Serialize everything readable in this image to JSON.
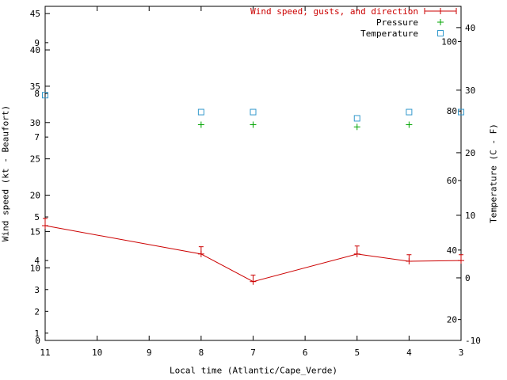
{
  "chart_data": {
    "type": "line",
    "title": "",
    "xlabel": "Local time (Atlantic/Cape_Verde)",
    "ylabel_left": "Wind speed (kt - Beaufort)",
    "ylabel_right": "Temperature (C - F)",
    "x_domain": [
      11,
      3
    ],
    "x_ticks": [
      "11",
      "10",
      "9",
      "8",
      "7",
      "6",
      "5",
      "4",
      "3"
    ],
    "grid": false,
    "legend_position": "top-right-inside",
    "left_axis": {
      "unit": "kt",
      "range": [
        0,
        46
      ],
      "kt_tick_labels": [
        45,
        40,
        35,
        30,
        25,
        20,
        15,
        10,
        0
      ],
      "beaufort_tick_labels": [
        {
          "label": "9",
          "kt": 41
        },
        {
          "label": "8",
          "kt": 34
        },
        {
          "label": "7",
          "kt": 28
        },
        {
          "label": "5",
          "kt": 17
        },
        {
          "label": "4",
          "kt": 11
        },
        {
          "label": "3",
          "kt": 7
        },
        {
          "label": "2",
          "kt": 4
        },
        {
          "label": "1",
          "kt": 1
        }
      ]
    },
    "right_axis": {
      "unit": "C / F",
      "celsius_range": [
        -10,
        43.4
      ],
      "celsius_tick_labels": [
        40,
        30,
        20,
        10,
        0,
        -10
      ],
      "fahrenheit_tick_labels": [
        100,
        80,
        60,
        40,
        20
      ]
    },
    "series": [
      {
        "name": "Wind speed, gusts, and direction",
        "color": "#cc0000",
        "legend_text_color": "#cc0000",
        "marker": "plus-errorbar",
        "axis": "left",
        "unit": "kt",
        "points": [
          {
            "x": 11,
            "speed": 15.8,
            "gust": 16.8
          },
          {
            "x": 8,
            "speed": 11.9,
            "gust": 12.9
          },
          {
            "x": 7,
            "speed": 8.1,
            "gust": 9.0
          },
          {
            "x": 5,
            "speed": 11.9,
            "gust": 13.0
          },
          {
            "x": 4,
            "speed": 10.9,
            "gust": 11.8
          },
          {
            "x": 3,
            "speed": 11.0,
            "gust": 11.8
          }
        ]
      },
      {
        "name": "Pressure",
        "color": "#00a400",
        "legend_text_color": "#000000",
        "marker": "plus",
        "axis": "left",
        "note": "pressure scale not labeled on chart; y values are plot positions on the left axis",
        "points": [
          {
            "x": 8,
            "y": 29.7
          },
          {
            "x": 7,
            "y": 29.7
          },
          {
            "x": 5,
            "y": 29.4
          },
          {
            "x": 4,
            "y": 29.7
          }
        ]
      },
      {
        "name": "Temperature",
        "color": "#3399cc",
        "legend_text_color": "#000000",
        "marker": "open-square",
        "axis": "right",
        "unit": "C",
        "points": [
          {
            "x": 11,
            "c": 29.2
          },
          {
            "x": 8,
            "c": 26.5
          },
          {
            "x": 7,
            "c": 26.5
          },
          {
            "x": 5,
            "c": 25.5
          },
          {
            "x": 4,
            "c": 26.5
          },
          {
            "x": 3,
            "c": 26.5
          }
        ]
      }
    ],
    "colors": {
      "wind": "#cc0000",
      "pressure": "#00a400",
      "temperature": "#3399cc",
      "axis": "#000000",
      "background": "#ffffff"
    }
  }
}
